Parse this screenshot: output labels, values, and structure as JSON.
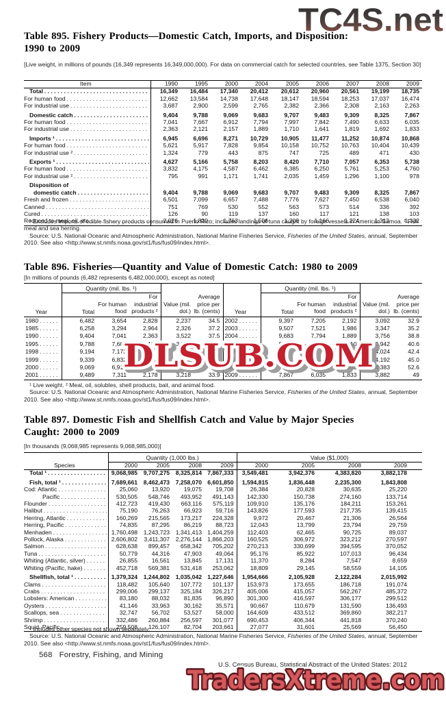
{
  "page": {
    "footer_left_page": "568",
    "footer_left_section": "Forestry, Fishing, and Mining",
    "footer_right": "U.S. Census Bureau, Statistical Abstract of the United States: 2012"
  },
  "watermarks": {
    "top": "TC4S.net",
    "middle": "DLSUB.COM",
    "bottom": "TradersXtreme.com"
  },
  "colors": {
    "dlsub_red": "#c4202e",
    "dlsub_shadow": "#8e8e8e",
    "traders_fill": "#d4585c",
    "traders_outline": "#5e1a1d",
    "tc4s_top": "#2b2b2e",
    "tc4s_mid": "#4a423f",
    "tc4s_bottom": "#9c5247"
  },
  "table895": {
    "title_line1": "Table 895. Fishery Products—Domestic Catch, Imports, and Disposition:",
    "title_line2": "1990 to 2009",
    "headnote": "[Live weight, in millions of pounds (16,349 represents 16,349,000,000). For data on commercial catch for selected countries, see Table 1375, Section 30]",
    "col_header": "Item",
    "years": [
      "1990",
      "1995",
      "2000",
      "2004",
      "2005",
      "2006",
      "2007",
      "2008",
      "2009"
    ],
    "rows": [
      {
        "label": "Total",
        "bold": true,
        "ind": 1,
        "v": [
          "16,349",
          "16,484",
          "17,340",
          "20,412",
          "20,612",
          "20,960",
          "20,561",
          "19,199",
          "18,735"
        ]
      },
      {
        "label": "For human food",
        "v": [
          "12,662",
          "13,584",
          "14,738",
          "17,648",
          "18,147",
          "18,594",
          "18,253",
          "17,037",
          "16,474"
        ]
      },
      {
        "label": "For industrial use",
        "v": [
          "3,687",
          "2,900",
          "2,599",
          "2,765",
          "2,382",
          "2,366",
          "2,308",
          "2,163",
          "2,263"
        ]
      },
      {
        "label": "Domestic catch",
        "bold": true,
        "ind": 1,
        "gap": true,
        "v": [
          "9,404",
          "9,788",
          "9,069",
          "9,683",
          "9,707",
          "9,483",
          "9,309",
          "8,325",
          "7,867"
        ]
      },
      {
        "label": "For human food",
        "v": [
          "7,041",
          "7,667",
          "6,912",
          "7,794",
          "7,997",
          "7,842",
          "7,490",
          "6,633",
          "6,035"
        ]
      },
      {
        "label": "For industrial use",
        "v": [
          "2,363",
          "2,121",
          "2,157",
          "1,889",
          "1,710",
          "1,641",
          "1,819",
          "1,692",
          "1,833"
        ]
      },
      {
        "label": "Imports ¹",
        "bold": true,
        "ind": 1,
        "gap": true,
        "v": [
          "6,945",
          "6,696",
          "8,271",
          "10,729",
          "10,905",
          "11,477",
          "11,252",
          "10,874",
          "10,868"
        ]
      },
      {
        "label": "For human food",
        "v": [
          "5,621",
          "5,917",
          "7,828",
          "9,854",
          "10,158",
          "10,752",
          "10,763",
          "10,404",
          "10,439"
        ]
      },
      {
        "label": "For industrial use ²",
        "v": [
          "1,324",
          "779",
          "443",
          "875",
          "747",
          "725",
          "489",
          "471",
          "430"
        ]
      },
      {
        "label": "Exports ¹",
        "bold": true,
        "ind": 1,
        "gap": true,
        "v": [
          "4,627",
          "5,166",
          "5,758",
          "8,203",
          "8,420",
          "7,710",
          "7,057",
          "6,353",
          "5,738"
        ]
      },
      {
        "label": "For human food",
        "v": [
          "3,832",
          "4,175",
          "4,587",
          "6,462",
          "6,385",
          "6,250",
          "5,761",
          "5,253",
          "4,760"
        ]
      },
      {
        "label": "For industrial use ²",
        "v": [
          "795",
          "991",
          "1,171",
          "1,741",
          "2,035",
          "1,459",
          "1,296",
          "1,100",
          "978"
        ]
      },
      {
        "label": "Disposition of",
        "bold": true,
        "ind": 1,
        "gap": true,
        "noleader": true,
        "v": null
      },
      {
        "label": "domestic catch",
        "bold": true,
        "ind": 2,
        "v": [
          "9,404",
          "9,788",
          "9,069",
          "9,683",
          "9,707",
          "9,483",
          "9,309",
          "8,325",
          "7,867"
        ]
      },
      {
        "label": "Fresh and frozen",
        "v": [
          "6,501",
          "7,099",
          "6,657",
          "7,488",
          "7,776",
          "7,627",
          "7,450",
          "6,538",
          "6,040"
        ]
      },
      {
        "label": "Canned",
        "v": [
          "751",
          "769",
          "530",
          "552",
          "563",
          "573",
          "514",
          "336",
          "392"
        ]
      },
      {
        "label": "Cured",
        "v": [
          "126",
          "90",
          "119",
          "137",
          "160",
          "117",
          "121",
          "138",
          "103"
        ]
      },
      {
        "label": "Reduced to meal, oil, etc.",
        "v": [
          "2,026",
          "1,830",
          "1,763",
          "1,506",
          "1,208",
          "1,166",
          "1,224",
          "1,313",
          "1,332"
        ]
      }
    ],
    "footnote1": "¹ Excludes imports of edible fishery products consumed in Puerto Rico;  includes landings of tuna caught by foreign vessels in American Samoa. ² Fish meal and sea herring.",
    "src_pre": "Source: U.S. National Oceanic and Atmospheric Administration, National Marine Fisheries Service, ",
    "src_italic": "Fisheries of the United States,",
    "src_post": " annual, September 2010. See also <http://www.st.nmfs.noaa.gov/st1/fus/fus09/index.html>."
  },
  "table896": {
    "title": "Table 896. Fisheries—Quantity and Value of Domestic Catch: 1980 to 2009",
    "headnote": "[In millions of pounds (6,482 represents 6,482,000,000), except as noted]",
    "header": {
      "year": "Year",
      "quantity_group": "Quantity (mil. lbs. ¹)",
      "total": "Total",
      "human": "For human food",
      "industrial": "For industrial products ²",
      "value": "Value (mil. dol.)",
      "price": "Average price per lb. (cents)"
    },
    "left_rows": [
      {
        "year": "1980",
        "v": [
          "6,482",
          "3,654",
          "2,828",
          "2,237",
          "34.5"
        ]
      },
      {
        "year": "1985",
        "v": [
          "6,258",
          "3,294",
          "2,964",
          "2,326",
          "37.2"
        ]
      },
      {
        "year": "1990",
        "v": [
          "9,404",
          "7,041",
          "2,363",
          "3,522",
          "37.5"
        ]
      },
      {
        "year": "1995",
        "v": [
          "9,788",
          "7,667",
          "2,121",
          "3,770",
          "38.5"
        ]
      },
      {
        "year": "1998",
        "v": [
          "9,194",
          "7,173",
          "",
          "",
          ""
        ]
      },
      {
        "year": "1999",
        "v": [
          "9,339",
          "6,832",
          "",
          "",
          ""
        ]
      },
      {
        "year": "2000",
        "v": [
          "9,069",
          "6,912",
          "",
          "",
          ""
        ]
      },
      {
        "year": "2001",
        "v": [
          "9,489",
          "7,311",
          "2,178",
          "3,218",
          "33.9"
        ]
      }
    ],
    "right_rows": [
      {
        "year": "2002",
        "v": [
          "9,397",
          "7,205",
          "2,192",
          "3,092",
          "32.9"
        ]
      },
      {
        "year": "2003",
        "v": [
          "9,507",
          "7,521",
          "1,986",
          "3,347",
          "35.2"
        ]
      },
      {
        "year": "2004",
        "v": [
          "9,683",
          "7,794",
          "1,889",
          "3,756",
          "38.8"
        ]
      },
      {
        "year": "2005",
        "v": [
          "9,707",
          "7,997",
          "1,710",
          "3,942",
          "40.6"
        ]
      },
      {
        "year": "2006",
        "v": [
          "",
          "",
          "1,641",
          "4,024",
          "42.4"
        ]
      },
      {
        "year": "2007",
        "v": [
          "",
          "",
          "1,819",
          "4,192",
          "45.0"
        ]
      },
      {
        "year": "2008",
        "v": [
          "",
          "",
          "1,692",
          "4,383",
          "52.6"
        ]
      },
      {
        "year": "2009",
        "v": [
          "7,867",
          "6,035",
          "1,833",
          "3,882",
          "49"
        ]
      }
    ],
    "footnote1": "¹ Live weight. ² Meal, oil, solubles, shell products, bait, and animal food.",
    "src_pre": "Source: U.S. National Oceanic and Atmospheric Administration, National Marine Fisheries Service, ",
    "src_italic": "Fisheries of the United States,",
    "src_post": " annual, September 2010. See also <http://www.st.nmfs.noaa.gov/st1/fus/fus09/index.html>."
  },
  "table897": {
    "title_line1": "Table 897. Domestic Fish and Shellfish Catch and Value by Major Species",
    "title_line2": "Caught: 2000 to 2009",
    "headnote": "[In thousands (9,068,985 represents 9,068,985,000)]",
    "col_header": "Species",
    "quantity_group": "Quantity (1,000 lbs.)",
    "value_group": "Value ($1,000)",
    "years": [
      "2000",
      "2005",
      "2008",
      "2009"
    ],
    "rows": [
      {
        "label": "Total ¹",
        "bold": true,
        "ind": 1,
        "q": [
          "9,068,985",
          "9,707,275",
          "8,325,814",
          "7,867,333"
        ],
        "v": [
          "3,549,481",
          "3,942,376",
          "4,383,820",
          "3,882,178"
        ]
      },
      {
        "label": "Fish, total ¹",
        "bold": true,
        "ind": 1,
        "gap": true,
        "q": [
          "7,689,661",
          "8,462,473",
          "7,258,070",
          "6,601,850"
        ],
        "v": [
          "1,594,815",
          "1,836,448",
          "2,235,300",
          "1,843,808"
        ]
      },
      {
        "label": "Cod: Atlantic",
        "q": [
          "25,060",
          "13,920",
          "19,075",
          "19,708"
        ],
        "v": [
          "26,384",
          "20,828",
          "30,635",
          "25,220"
        ]
      },
      {
        "label": "Pacific",
        "ind": 3,
        "q": [
          "530,505",
          "548,746",
          "493,952",
          "491,143"
        ],
        "v": [
          "142,330",
          "150,738",
          "274,160",
          "133,714"
        ]
      },
      {
        "label": "Flounder",
        "q": [
          "412,723",
          "419,430",
          "663,116",
          "575,119"
        ],
        "v": [
          "109,910",
          "135,176",
          "184,211",
          "153,261"
        ]
      },
      {
        "label": "Halibut",
        "q": [
          "75,190",
          "76,263",
          "66,923",
          "59,716"
        ],
        "v": [
          "143,826",
          "177,593",
          "217,735",
          "139,415"
        ]
      },
      {
        "label": "Herring, Atlantic",
        "q": [
          "160,269",
          "215,565",
          "173,217",
          "224,328"
        ],
        "v": [
          "9,972",
          "20,467",
          "21,306",
          "26,564"
        ]
      },
      {
        "label": "Herring, Pacific",
        "q": [
          "74,835",
          "87,295",
          "86,219",
          "88,723"
        ],
        "v": [
          "12,043",
          "13,799",
          "23,794",
          "29,759"
        ]
      },
      {
        "label": "Menhaden",
        "q": [
          "1,760,498",
          "1,243,723",
          "1,341,413",
          "1,404,259"
        ],
        "v": [
          "112,403",
          "62,465",
          "90,725",
          "89,037"
        ]
      },
      {
        "label": "Pollock, Alaska",
        "q": [
          "2,606,802",
          "3,411,307",
          "2,276,144",
          "1,866,203"
        ],
        "v": [
          "160,525",
          "306,972",
          "323,212",
          "270,597"
        ]
      },
      {
        "label": "Salmon",
        "q": [
          "628,638",
          "899,457",
          "658,342",
          "705,202"
        ],
        "v": [
          "270,213",
          "330,699",
          "394,595",
          "370,052"
        ]
      },
      {
        "label": "Tuna",
        "q": [
          "50,779",
          "44,316",
          "47,903",
          "49,064"
        ],
        "v": [
          "95,176",
          "85,922",
          "107,013",
          "96,434"
        ]
      },
      {
        "label": "Whiting (Atlantic, silver)",
        "q": [
          "26,855",
          "16,561",
          "13,845",
          "17,131"
        ],
        "v": [
          "11,370",
          "8,284",
          "7,547",
          "8,659"
        ]
      },
      {
        "label": "Whiting (Pacific, hake)",
        "q": [
          "452,718",
          "569,381",
          "531,418",
          "253,062"
        ],
        "v": [
          "18,809",
          "29,145",
          "58,559",
          "14,105"
        ]
      },
      {
        "label": "Shellfish, total ¹",
        "bold": true,
        "ind": 1,
        "gap": true,
        "q": [
          "1,379,324",
          "1,244,802",
          "1,035,042",
          "1,227,646"
        ],
        "v": [
          "1,954,666",
          "2,105,928",
          "2,122,284",
          "2,015,992"
        ]
      },
      {
        "label": "Clams",
        "q": [
          "118,482",
          "105,640",
          "107,772",
          "101,137"
        ],
        "v": [
          "153,973",
          "173,655",
          "186,718",
          "191,074"
        ]
      },
      {
        "label": "Crabs",
        "q": [
          "299,006",
          "299,137",
          "325,184",
          "326,217"
        ],
        "v": [
          "405,006",
          "415,057",
          "562,267",
          "485,372"
        ]
      },
      {
        "label": "Lobsters: American",
        "q": [
          "83,180",
          "88,032",
          "81,835",
          "96,890"
        ],
        "v": [
          "301,300",
          "416,597",
          "306,177",
          "299,512"
        ]
      },
      {
        "label": "Oysters",
        "q": [
          "41,146",
          "33,963",
          "30,162",
          "35,571"
        ],
        "v": [
          "90,667",
          "110,679",
          "131,590",
          "136,493"
        ]
      },
      {
        "label": "Scallops, sea",
        "q": [
          "32,747",
          "56,702",
          "53,527",
          "58,000"
        ],
        "v": [
          "164,609",
          "433,512",
          "369,860",
          "382,217"
        ]
      },
      {
        "label": "Shrimp",
        "q": [
          "332,486",
          "260,884",
          "256,597",
          "301,077"
        ],
        "v": [
          "690,453",
          "406,344",
          "441,818",
          "370,240"
        ]
      },
      {
        "label": "Squid, Pacific",
        "q": [
          "259,508",
          "126,107",
          "82,704",
          "203,661"
        ],
        "v": [
          "27,077",
          "31,601",
          "25,569",
          "56,450"
        ]
      }
    ],
    "footnote1": "¹ Includes other species not shown separately.",
    "src_pre": "Source: U.S. National Oceanic and Atmospheric Administration, National Marine Fisheries Service, ",
    "src_italic": "Fisheries of the United States,",
    "src_post": " annual, September 2010. See also <http://www.st.nmfs.noaa.gov/st1/fus/fus09/index.html>."
  }
}
